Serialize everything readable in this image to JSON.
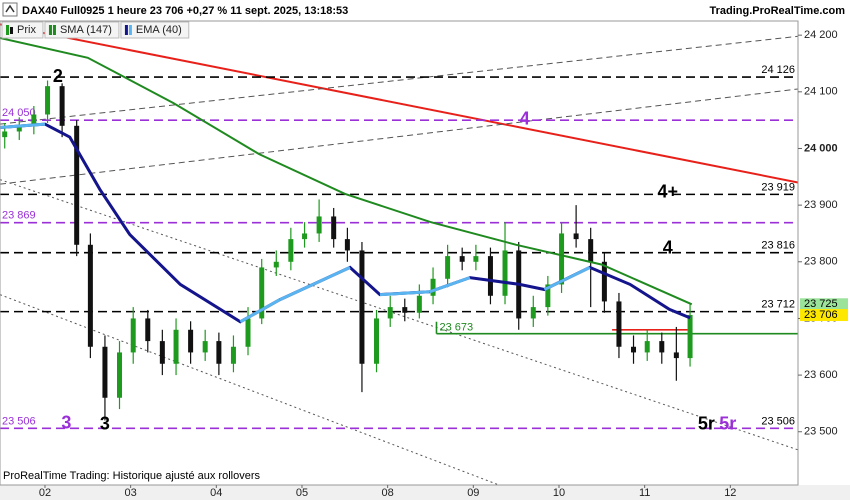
{
  "header": {
    "title": "DAX40 Full0925 1 heure 23 706 +0,27 % 11 sept. 2025, 13:18:53",
    "site": "Trading.ProRealTime.com"
  },
  "footer": "ProRealTime Trading: Historique ajusté aux rollovers",
  "chart_data": {
    "type": "candlestick",
    "series": [
      {
        "name": "Prix",
        "type": "candlestick",
        "up_color": "#1e9a1e",
        "down_color": "#111111",
        "x": [
          0.53,
          0.7,
          0.87,
          1.03,
          1.2,
          1.37,
          1.53,
          1.7,
          1.87,
          2.03,
          2.2,
          2.37,
          2.53,
          2.7,
          2.87,
          3.03,
          3.2,
          3.37,
          3.53,
          3.7,
          3.87,
          4.03,
          4.2,
          4.37,
          4.53,
          4.7,
          4.87,
          5.03,
          5.2,
          5.37,
          5.53,
          5.7,
          5.87,
          6.03,
          6.2,
          6.37,
          6.53,
          6.7,
          6.87,
          7.03,
          7.2,
          7.37,
          7.53,
          7.7,
          7.87,
          8.03,
          8.2,
          8.37,
          8.53
        ],
        "open": [
          24020,
          24030,
          24040,
          24060,
          24110,
          24040,
          23830,
          23650,
          23560,
          23640,
          23700,
          23660,
          23620,
          23680,
          23640,
          23660,
          23620,
          23650,
          23700,
          23790,
          23800,
          23840,
          23850,
          23880,
          23840,
          23820,
          23620,
          23700,
          23720,
          23710,
          23740,
          23770,
          23810,
          23800,
          23810,
          23740,
          23820,
          23700,
          23720,
          23760,
          23850,
          23840,
          23800,
          23730,
          23650,
          23640,
          23660,
          23640,
          23630
        ],
        "high": [
          24045,
          24055,
          24075,
          24120,
          24115,
          24050,
          23850,
          23670,
          23660,
          23720,
          23715,
          23680,
          23700,
          23695,
          23680,
          23675,
          23670,
          23720,
          23805,
          23820,
          23860,
          23870,
          23910,
          23895,
          23860,
          23835,
          23715,
          23740,
          23735,
          23760,
          23790,
          23830,
          23825,
          23830,
          23825,
          23870,
          23835,
          23740,
          23775,
          23870,
          23900,
          23860,
          23815,
          23745,
          23670,
          23680,
          23675,
          23685,
          23725
        ],
        "low": [
          24000,
          24015,
          24025,
          24045,
          24020,
          23810,
          23630,
          23520,
          23540,
          23620,
          23640,
          23600,
          23600,
          23620,
          23625,
          23600,
          23605,
          23635,
          23690,
          23775,
          23785,
          23825,
          23835,
          23825,
          23800,
          23570,
          23605,
          23685,
          23695,
          23700,
          23725,
          23755,
          23785,
          23785,
          23725,
          23725,
          23680,
          23685,
          23705,
          23745,
          23825,
          23720,
          23710,
          23630,
          23620,
          23625,
          23620,
          23590,
          23615
        ],
        "close": [
          24030,
          24040,
          24060,
          24110,
          24040,
          23830,
          23650,
          23560,
          23640,
          23700,
          23660,
          23620,
          23680,
          23640,
          23660,
          23620,
          23650,
          23700,
          23790,
          23800,
          23840,
          23850,
          23880,
          23840,
          23820,
          23620,
          23700,
          23720,
          23710,
          23740,
          23770,
          23810,
          23800,
          23810,
          23740,
          23820,
          23700,
          23720,
          23760,
          23850,
          23840,
          23800,
          23730,
          23650,
          23640,
          23660,
          23640,
          23630,
          23706
        ]
      },
      {
        "name": "SMA (147)",
        "type": "line",
        "color": "#1f8a1f",
        "x": [
          0.475,
          1.5,
          2.5,
          3.5,
          4.5,
          5.5,
          6.5,
          7.5,
          8.55
        ],
        "values": [
          24195,
          24160,
          24080,
          23990,
          23920,
          23870,
          23830,
          23795,
          23725
        ]
      },
      {
        "name": "EMA (40)",
        "type": "line",
        "color": "#14148c",
        "rising_color": "#5ab4f0",
        "x": [
          0.475,
          1,
          1.29,
          1.64,
          1.99,
          2.58,
          3.28,
          3.74,
          4.56,
          4.91,
          5.49,
          5.96,
          6.54,
          6.83,
          7.36,
          7.83,
          8.29,
          8.53
        ],
        "values": [
          24037,
          24043,
          24020,
          23928,
          23848,
          23760,
          23694,
          23733,
          23790,
          23742,
          23747,
          23772,
          23760,
          23751,
          23790,
          23760,
          23716,
          23701
        ]
      }
    ],
    "xlim": [
      0.475,
      9.79
    ],
    "xticks": [
      {
        "value": 1,
        "label": "02"
      },
      {
        "value": 2,
        "label": "03"
      },
      {
        "value": 3,
        "label": "04"
      },
      {
        "value": 4,
        "label": "05"
      },
      {
        "value": 5,
        "label": "08"
      },
      {
        "value": 6,
        "label": "09"
      },
      {
        "value": 7,
        "label": "10"
      },
      {
        "value": 8,
        "label": "11"
      },
      {
        "value": 9,
        "label": "12"
      }
    ],
    "ylim": [
      23406,
      24225
    ],
    "yticks": [
      {
        "value": 23500,
        "label": "23 500"
      },
      {
        "value": 23600,
        "label": "23 600"
      },
      {
        "value": 23700,
        "label": "23 700"
      },
      {
        "value": 23800,
        "label": "23 800"
      },
      {
        "value": 23900,
        "label": "23 900"
      },
      {
        "value": 24000,
        "label": "24 000"
      },
      {
        "value": 24100,
        "label": "24 100"
      },
      {
        "value": 24200,
        "label": "24 200"
      }
    ],
    "levels": [
      {
        "value": 24126,
        "color": "#000000",
        "label": "24 126"
      },
      {
        "value": 24050,
        "color": "#9b30d9",
        "left_label": "24 050"
      },
      {
        "value": 23919,
        "color": "#000000",
        "label": "23 919"
      },
      {
        "value": 23869,
        "color": "#9b30d9",
        "left_label": "23 869"
      },
      {
        "value": 23816,
        "color": "#000000",
        "label": "23 816"
      },
      {
        "value": 23712,
        "color": "#000000",
        "label": "23 712"
      },
      {
        "value": 23506,
        "color": "#9b30d9",
        "label": "23 506",
        "left_label": "23 506"
      }
    ],
    "segments": [
      {
        "value": 23673,
        "x": [
          5.57,
          9.79
        ],
        "color": "#1f8a1f",
        "label": "23 673"
      },
      {
        "value": 23680,
        "x": [
          7.62,
          8.5
        ],
        "color": "#e8201a"
      }
    ],
    "trend_lines": [
      {
        "x": [
          0.475,
          9.79
        ],
        "y": [
          24219,
          23940
        ],
        "color": "#e8201a",
        "style": "solid"
      },
      {
        "x": [
          0.475,
          9.79
        ],
        "y": [
          23937,
          24105
        ],
        "color": "#555555",
        "style": "dashed"
      },
      {
        "x": [
          0.475,
          9.79
        ],
        "y": [
          24043,
          24198
        ],
        "color": "#555555",
        "style": "dashed"
      },
      {
        "x": [
          0.475,
          9.79
        ],
        "y": [
          23945,
          23468
        ],
        "color": "#555555",
        "style": "dotted"
      },
      {
        "x": [
          0.475,
          6.3
        ],
        "y": [
          23742,
          23406
        ],
        "color": "#555555",
        "style": "dotted"
      }
    ],
    "annotations": [
      {
        "text": "2",
        "x": 1.15,
        "y": 24126,
        "color": "#000000"
      },
      {
        "text": "4",
        "x": 6.6,
        "y": 24051,
        "color": "#9b30d9"
      },
      {
        "text": "4+",
        "x": 8.27,
        "y": 23922,
        "color": "#000000"
      },
      {
        "text": "4",
        "x": 8.27,
        "y": 23823,
        "color": "#000000"
      },
      {
        "text": "3",
        "x": 1.25,
        "y": 23514,
        "color": "#9b30d9"
      },
      {
        "text": "3",
        "x": 1.7,
        "y": 23512,
        "color": "#000000"
      },
      {
        "text": "5r",
        "x": 8.72,
        "y": 23512,
        "color": "#000000"
      },
      {
        "text": "5r",
        "x": 8.97,
        "y": 23512,
        "color": "#9b30d9"
      }
    ],
    "price_tags": [
      {
        "value": 23725,
        "label": "23 725",
        "color": "#9be39b"
      },
      {
        "value": 23706,
        "label": "23 706",
        "color": "#ffe800"
      }
    ]
  }
}
